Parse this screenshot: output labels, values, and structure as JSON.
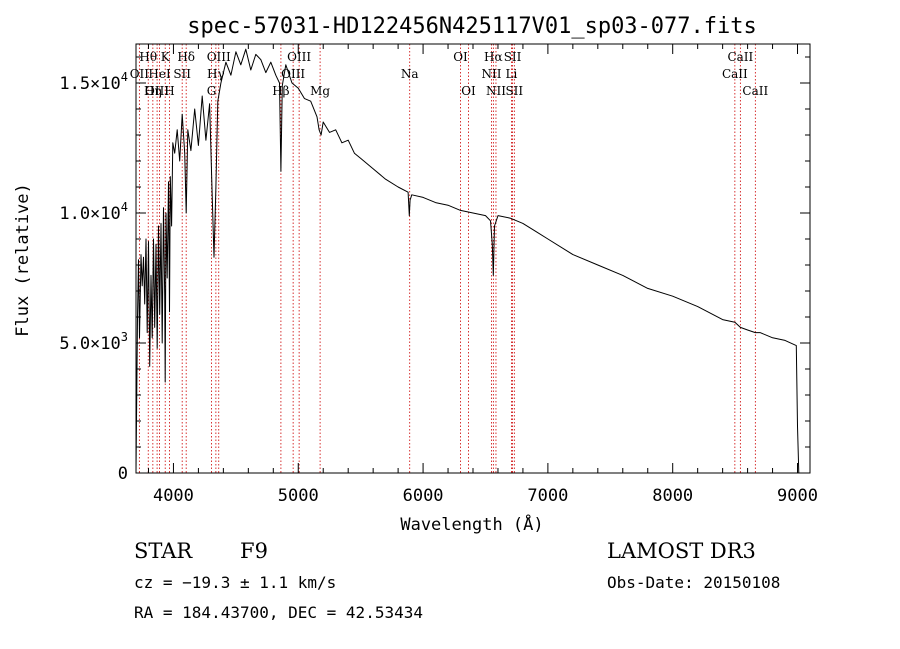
{
  "chart_data": {
    "type": "line",
    "title": "spec-57031-HD122456N425117V01_sp03-077.fits",
    "xlabel": "Wavelength (Å)",
    "ylabel": "Flux (relative)",
    "xlim": [
      3700,
      9100
    ],
    "ylim": [
      0,
      16500
    ],
    "x_ticks": [
      4000,
      5000,
      6000,
      7000,
      8000,
      9000
    ],
    "x_tick_labels": [
      "4000",
      "5000",
      "6000",
      "7000",
      "8000",
      "9000"
    ],
    "y_ticks": [
      {
        "value": 0,
        "mantissa": "0",
        "exp": ""
      },
      {
        "value": 5000,
        "mantissa": "5.0×10",
        "exp": "3"
      },
      {
        "value": 10000,
        "mantissa": "1.0×10",
        "exp": "4"
      },
      {
        "value": 15000,
        "mantissa": "1.5×10",
        "exp": "4"
      }
    ],
    "series": [
      {
        "name": "spectrum",
        "x": [
          3700,
          3712,
          3720,
          3728,
          3740,
          3750,
          3760,
          3770,
          3780,
          3790,
          3800,
          3810,
          3820,
          3830,
          3840,
          3850,
          3860,
          3870,
          3880,
          3890,
          3900,
          3910,
          3920,
          3930,
          3934,
          3940,
          3950,
          3960,
          3968,
          3975,
          3985,
          3995,
          4010,
          4030,
          4050,
          4070,
          4090,
          4102,
          4115,
          4140,
          4170,
          4200,
          4230,
          4260,
          4290,
          4310,
          4325,
          4340,
          4355,
          4380,
          4420,
          4460,
          4500,
          4540,
          4580,
          4620,
          4660,
          4700,
          4740,
          4780,
          4820,
          4850,
          4861,
          4872,
          4900,
          4950,
          5000,
          5050,
          5100,
          5150,
          5167,
          5183,
          5200,
          5250,
          5300,
          5350,
          5400,
          5450,
          5500,
          5600,
          5700,
          5800,
          5880,
          5890,
          5896,
          5910,
          6000,
          6100,
          6200,
          6300,
          6400,
          6500,
          6540,
          6555,
          6563,
          6572,
          6600,
          6700,
          6800,
          6900,
          7000,
          7200,
          7400,
          7600,
          7800,
          8000,
          8200,
          8400,
          8498,
          8542,
          8600,
          8662,
          8700,
          8800,
          8900,
          8990,
          9000,
          9010
        ],
        "values": [
          0,
          6000,
          8200,
          5200,
          8400,
          7200,
          8300,
          6500,
          9000,
          5400,
          8900,
          4100,
          7600,
          5200,
          9000,
          5600,
          8800,
          4800,
          9500,
          6100,
          9600,
          5000,
          10200,
          6800,
          3500,
          10000,
          7500,
          11200,
          6200,
          11400,
          9500,
          12700,
          12300,
          13200,
          12000,
          13800,
          12300,
          10000,
          13200,
          12400,
          14000,
          12600,
          14500,
          12800,
          14200,
          10800,
          8300,
          11000,
          14300,
          15000,
          15800,
          15300,
          16200,
          15700,
          16300,
          15500,
          16100,
          15900,
          15400,
          15800,
          15300,
          15000,
          11600,
          14900,
          15700,
          15000,
          14800,
          14400,
          14300,
          13700,
          13200,
          13000,
          13500,
          13100,
          13200,
          12700,
          12800,
          12300,
          12100,
          11700,
          11300,
          11000,
          10800,
          9900,
          10500,
          10700,
          10600,
          10400,
          10300,
          10100,
          10000,
          9900,
          9700,
          8800,
          7600,
          9500,
          9900,
          9800,
          9600,
          9300,
          9000,
          8400,
          8000,
          7600,
          7100,
          6800,
          6400,
          5900,
          5800,
          5600,
          5500,
          5400,
          5400,
          5200,
          5100,
          4900,
          1800,
          0
        ]
      }
    ],
    "lines": [
      {
        "name": "Hθ",
        "x": 3798,
        "row": 1
      },
      {
        "name": "OII",
        "x": 3727,
        "row": 2
      },
      {
        "name": "Hη",
        "x": 3835,
        "row": 3
      },
      {
        "name": "OIII",
        "x": 3869,
        "row": 3
      },
      {
        "name": "HeI",
        "x": 3889,
        "row": 2
      },
      {
        "name": "K",
        "x": 3934,
        "row": 1
      },
      {
        "name": "SII",
        "x": 4070,
        "row": 2
      },
      {
        "name": "H",
        "x": 3968,
        "row": 3
      },
      {
        "name": "Hδ",
        "x": 4102,
        "row": 1
      },
      {
        "name": "OIII",
        "x": 4363,
        "row": 1
      },
      {
        "name": "Hγ",
        "x": 4340,
        "row": 2
      },
      {
        "name": "G",
        "x": 4305,
        "row": 3
      },
      {
        "name": "Hβ",
        "x": 4861,
        "row": 3
      },
      {
        "name": "OIII",
        "x": 5007,
        "row": 1
      },
      {
        "name": "OIII",
        "x": 4959,
        "row": 2
      },
      {
        "name": "Mg",
        "x": 5175,
        "row": 3
      },
      {
        "name": "Na",
        "x": 5893,
        "row": 2
      },
      {
        "name": "OI",
        "x": 6300,
        "row": 1
      },
      {
        "name": "OI",
        "x": 6364,
        "row": 3
      },
      {
        "name": "Hα",
        "x": 6563,
        "row": 1
      },
      {
        "name": "NII",
        "x": 6548,
        "row": 2
      },
      {
        "name": "NII",
        "x": 6584,
        "row": 3
      },
      {
        "name": "SII",
        "x": 6717,
        "row": 1
      },
      {
        "name": "Li",
        "x": 6708,
        "row": 2
      },
      {
        "name": "SII",
        "x": 6731,
        "row": 3
      },
      {
        "name": "CaII",
        "x": 8498,
        "row": 2
      },
      {
        "name": "CaII",
        "x": 8542,
        "row": 1
      },
      {
        "name": "CaII",
        "x": 8662,
        "row": 3
      }
    ]
  },
  "info": {
    "object_class": "STAR",
    "subclass": "F9",
    "survey": "LAMOST DR3",
    "cz": "cz = −19.3 ± 1.1 km/s",
    "obs_date": "Obs-Date: 20150108",
    "coords": "RA = 184.43700, DEC =  42.53434"
  },
  "colors": {
    "axis": "#000000",
    "line": "#000000",
    "marker": "#cc0000"
  }
}
